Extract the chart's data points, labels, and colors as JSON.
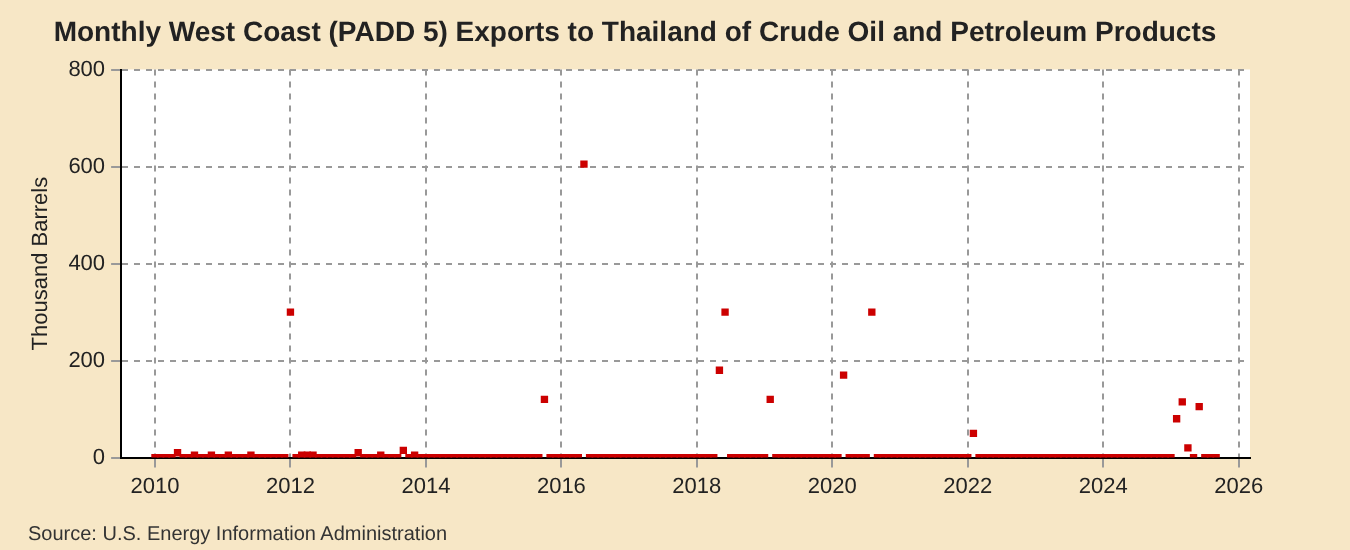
{
  "chart_data": {
    "type": "scatter",
    "title": "Monthly West Coast (PADD 5) Exports to Thailand of Crude Oil and Petroleum Products",
    "ylabel": "Thousand Barrels",
    "annotations": [
      "Source: U.S. Energy Information Administration"
    ],
    "x": [
      "2010-01",
      "2010-02",
      "2010-03",
      "2010-04",
      "2010-05",
      "2010-06",
      "2010-07",
      "2010-08",
      "2010-09",
      "2010-10",
      "2010-11",
      "2010-12",
      "2011-01",
      "2011-02",
      "2011-03",
      "2011-04",
      "2011-05",
      "2011-06",
      "2011-07",
      "2011-08",
      "2011-09",
      "2011-10",
      "2011-11",
      "2011-12",
      "2012-01",
      "2012-02",
      "2012-03",
      "2012-04",
      "2012-05",
      "2012-06",
      "2012-07",
      "2012-08",
      "2012-09",
      "2012-10",
      "2012-11",
      "2012-12",
      "2013-01",
      "2013-02",
      "2013-03",
      "2013-04",
      "2013-05",
      "2013-06",
      "2013-07",
      "2013-08",
      "2013-09",
      "2013-10",
      "2013-11",
      "2013-12",
      "2014-01",
      "2014-02",
      "2014-03",
      "2014-04",
      "2014-05",
      "2014-06",
      "2014-07",
      "2014-08",
      "2014-09",
      "2014-10",
      "2014-11",
      "2014-12",
      "2015-01",
      "2015-02",
      "2015-03",
      "2015-04",
      "2015-05",
      "2015-06",
      "2015-07",
      "2015-08",
      "2015-09",
      "2015-10",
      "2015-11",
      "2015-12",
      "2016-01",
      "2016-02",
      "2016-03",
      "2016-04",
      "2016-05",
      "2016-06",
      "2016-07",
      "2016-08",
      "2016-09",
      "2016-10",
      "2016-11",
      "2016-12",
      "2017-01",
      "2017-02",
      "2017-03",
      "2017-04",
      "2017-05",
      "2017-06",
      "2017-07",
      "2017-08",
      "2017-09",
      "2017-10",
      "2017-11",
      "2017-12",
      "2018-01",
      "2018-02",
      "2018-03",
      "2018-04",
      "2018-05",
      "2018-06",
      "2018-07",
      "2018-08",
      "2018-09",
      "2018-10",
      "2018-11",
      "2018-12",
      "2019-01",
      "2019-02",
      "2019-03",
      "2019-04",
      "2019-05",
      "2019-06",
      "2019-07",
      "2019-08",
      "2019-09",
      "2019-10",
      "2019-11",
      "2019-12",
      "2020-01",
      "2020-02",
      "2020-03",
      "2020-04",
      "2020-05",
      "2020-06",
      "2020-07",
      "2020-08",
      "2020-09",
      "2020-10",
      "2020-11",
      "2020-12",
      "2021-01",
      "2021-02",
      "2021-03",
      "2021-04",
      "2021-05",
      "2021-06",
      "2021-07",
      "2021-08",
      "2021-09",
      "2021-10",
      "2021-11",
      "2021-12",
      "2022-01",
      "2022-02",
      "2022-03",
      "2022-04",
      "2022-05",
      "2022-06",
      "2022-07",
      "2022-08",
      "2022-09",
      "2022-10",
      "2022-11",
      "2022-12",
      "2023-01",
      "2023-02",
      "2023-03",
      "2023-04",
      "2023-05",
      "2023-06",
      "2023-07",
      "2023-08",
      "2023-09",
      "2023-10",
      "2023-11",
      "2023-12",
      "2024-01",
      "2024-02",
      "2024-03",
      "2024-04",
      "2024-05",
      "2024-06",
      "2024-07",
      "2024-08",
      "2024-09",
      "2024-10",
      "2024-11",
      "2024-12",
      "2025-01",
      "2025-02",
      "2025-03",
      "2025-04",
      "2025-05",
      "2025-06",
      "2025-07",
      "2025-08",
      "2025-09"
    ],
    "series": [
      {
        "color": "#cc0000",
        "values": [
          0,
          0,
          0,
          0,
          10,
          0,
          0,
          5,
          0,
          0,
          5,
          0,
          0,
          5,
          0,
          0,
          0,
          5,
          0,
          0,
          0,
          0,
          0,
          0,
          300,
          0,
          5,
          5,
          5,
          0,
          0,
          0,
          0,
          0,
          0,
          0,
          10,
          0,
          0,
          0,
          5,
          0,
          0,
          0,
          15,
          0,
          5,
          0,
          0,
          0,
          0,
          0,
          0,
          0,
          0,
          0,
          0,
          0,
          0,
          0,
          0,
          0,
          0,
          0,
          0,
          0,
          0,
          0,
          0,
          120,
          0,
          0,
          0,
          0,
          0,
          0,
          605,
          0,
          0,
          0,
          0,
          0,
          0,
          0,
          0,
          0,
          0,
          0,
          0,
          0,
          0,
          0,
          0,
          0,
          0,
          0,
          0,
          0,
          0,
          0,
          180,
          300,
          0,
          0,
          0,
          0,
          0,
          0,
          0,
          120,
          0,
          0,
          0,
          0,
          0,
          0,
          0,
          0,
          0,
          0,
          0,
          0,
          170,
          0,
          0,
          0,
          0,
          300,
          0,
          0,
          0,
          0,
          0,
          0,
          0,
          0,
          0,
          0,
          0,
          0,
          0,
          0,
          0,
          0,
          0,
          50,
          0,
          0,
          0,
          0,
          0,
          0,
          0,
          0,
          0,
          0,
          0,
          0,
          0,
          0,
          0,
          0,
          0,
          0,
          0,
          0,
          0,
          0,
          0,
          0,
          0,
          0,
          0,
          0,
          0,
          0,
          0,
          0,
          0,
          0,
          0,
          80,
          115,
          20,
          0,
          105,
          0,
          0,
          0
        ]
      }
    ],
    "xlim": [
      "2009-07",
      "2026-03"
    ],
    "xticks": [
      "2010",
      "2012",
      "2014",
      "2016",
      "2018",
      "2020",
      "2022",
      "2024",
      "2026"
    ],
    "ylim": [
      0,
      800
    ],
    "yticks": [
      0,
      200,
      400,
      600,
      800
    ],
    "grid": true,
    "legend": false,
    "marker": "square"
  }
}
